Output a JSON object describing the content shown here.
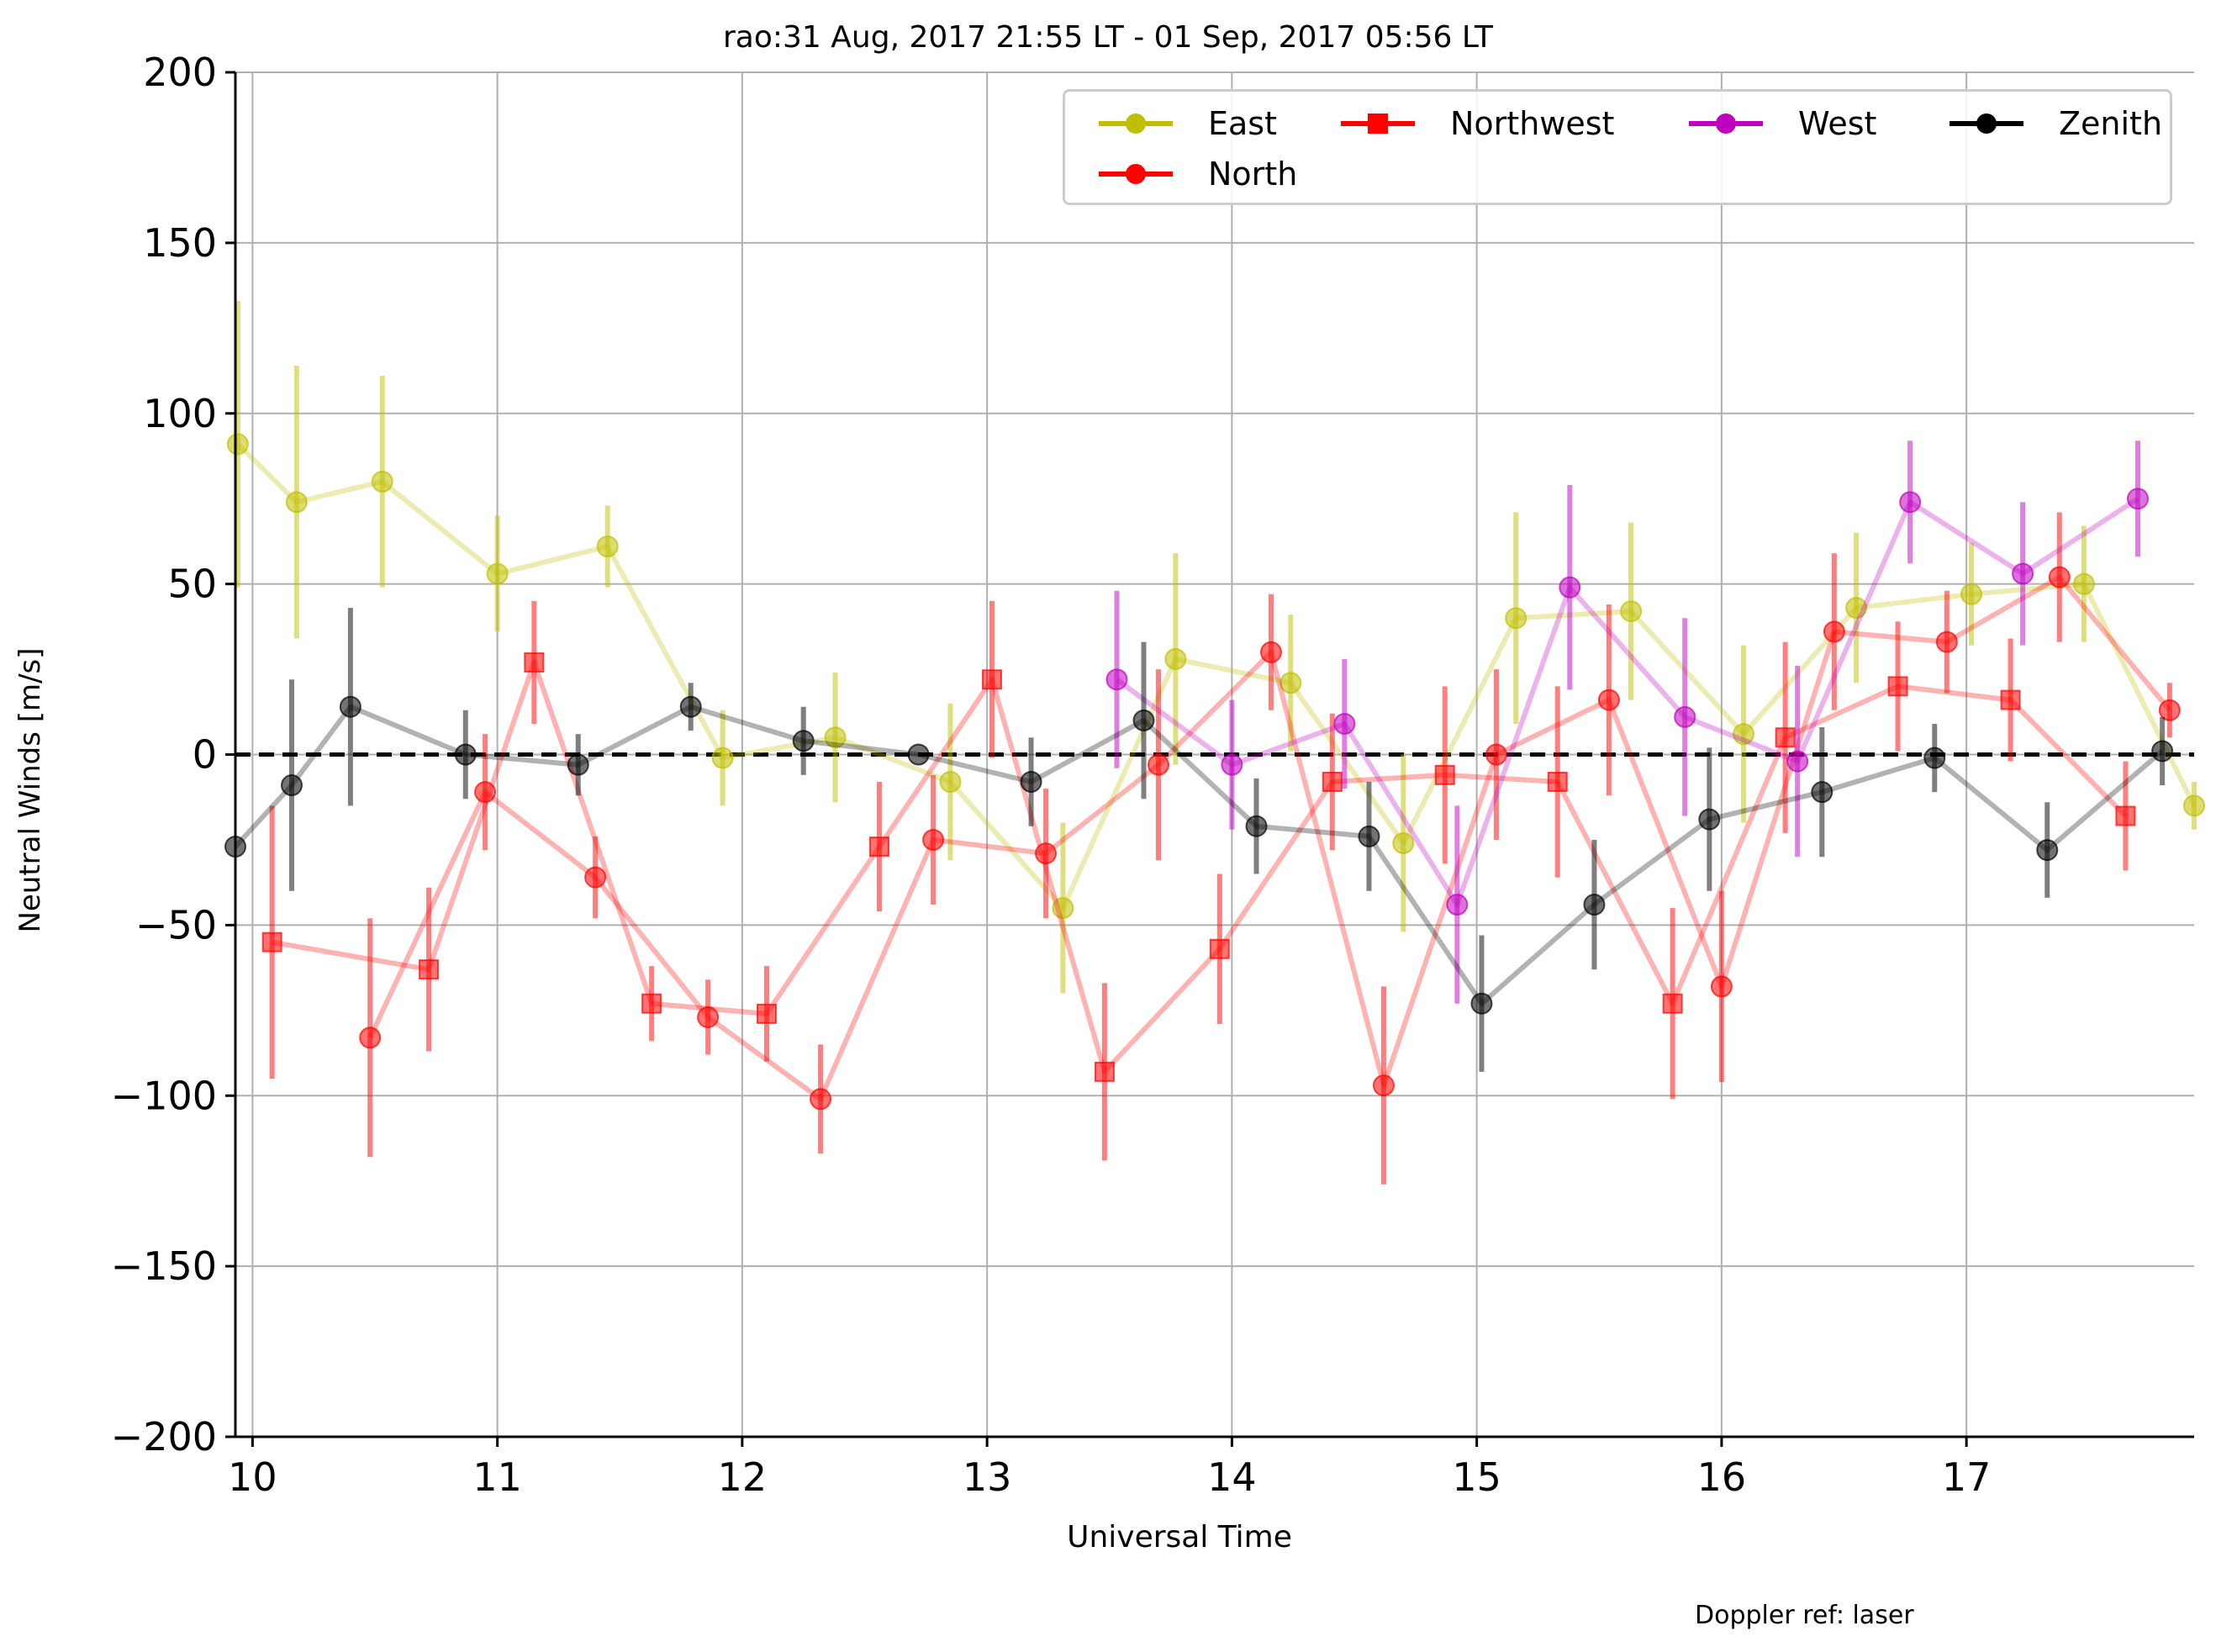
{
  "title": "rao:31 Aug, 2017 21:55 LT - 01 Sep, 2017 05:56 LT",
  "footnote": "Doppler ref: laser",
  "chart_data": {
    "type": "line",
    "xlabel": "Universal Time",
    "ylabel": "Neutral Winds [m/s]",
    "xlim": [
      9.93,
      17.93
    ],
    "ylim": [
      -200,
      200
    ],
    "xticks": [
      10,
      11,
      12,
      13,
      14,
      15,
      16,
      17
    ],
    "xtick_labels": [
      "10",
      "11",
      "12",
      "13",
      "14",
      "15",
      "16",
      "17"
    ],
    "yticks": [
      -200,
      -150,
      -100,
      -50,
      0,
      50,
      100,
      150,
      200
    ],
    "ytick_labels": [
      "−200",
      "−150",
      "−100",
      "−50",
      "0",
      "50",
      "100",
      "150",
      "200"
    ],
    "grid": true,
    "reference_line": 0,
    "legend_position": "top-right",
    "legend": [
      "East",
      "Northwest",
      "West",
      "Zenith",
      "North"
    ],
    "series": [
      {
        "name": "East",
        "color": "#bfbf00",
        "marker": "circle",
        "x": [
          9.94,
          10.18,
          10.53,
          11.0,
          11.45,
          11.92,
          12.38,
          12.85,
          13.31,
          13.77,
          14.24,
          14.7,
          15.16,
          15.63,
          16.09,
          16.55,
          17.02,
          17.48,
          17.93
        ],
        "y": [
          91,
          74,
          80,
          53,
          61,
          -1,
          5,
          -8,
          -45,
          28,
          21,
          -26,
          40,
          42,
          6,
          43,
          47,
          50,
          -15
        ],
        "err": [
          42,
          40,
          31,
          17,
          12,
          14,
          19,
          23,
          25,
          31,
          20,
          26,
          31,
          26,
          26,
          22,
          15,
          17,
          7
        ]
      },
      {
        "name": "North",
        "color": "#ff0000",
        "marker": "circle",
        "x": [
          10.48,
          10.95,
          11.4,
          11.86,
          12.32,
          12.78,
          13.24,
          13.7,
          14.16,
          14.62,
          15.08,
          15.54,
          16.0,
          16.46,
          16.92,
          17.38,
          17.83
        ],
        "y": [
          -83,
          -11,
          -36,
          -77,
          -101,
          -25,
          -29,
          -3,
          30,
          -97,
          0,
          16,
          -68,
          36,
          33,
          52,
          13
        ],
        "err": [
          35,
          17,
          12,
          11,
          16,
          19,
          19,
          28,
          17,
          29,
          25,
          28,
          28,
          23,
          15,
          19,
          8
        ]
      },
      {
        "name": "Northwest",
        "color": "#ff0000",
        "marker": "square",
        "x": [
          10.08,
          10.72,
          11.15,
          11.63,
          12.1,
          12.56,
          13.02,
          13.48,
          13.95,
          14.41,
          14.87,
          15.33,
          15.8,
          16.26,
          16.72,
          17.18,
          17.65
        ],
        "y": [
          -55,
          -63,
          27,
          -73,
          -76,
          -27,
          22,
          -93,
          -57,
          -8,
          -6,
          -8,
          -73,
          5,
          20,
          16,
          -18
        ],
        "err": [
          40,
          24,
          18,
          11,
          14,
          19,
          23,
          26,
          22,
          20,
          26,
          28,
          28,
          28,
          19,
          18,
          16
        ]
      },
      {
        "name": "West",
        "color": "#bf00bf",
        "marker": "circle",
        "x": [
          13.53,
          14.0,
          14.46,
          14.92,
          15.38,
          15.85,
          16.31,
          16.77,
          17.23,
          17.7
        ],
        "y": [
          22,
          -3,
          9,
          -44,
          49,
          11,
          -2,
          74,
          53,
          75
        ],
        "err": [
          26,
          19,
          19,
          29,
          30,
          29,
          28,
          18,
          21,
          17
        ]
      },
      {
        "name": "Zenith",
        "color": "#000000",
        "marker": "circle",
        "x": [
          9.93,
          10.16,
          10.4,
          10.87,
          11.33,
          11.79,
          12.25,
          12.72,
          13.18,
          13.64,
          14.1,
          14.56,
          15.02,
          15.48,
          15.95,
          16.41,
          16.87,
          17.33,
          17.8
        ],
        "y": [
          -27,
          -9,
          14,
          0,
          -3,
          14,
          4,
          0,
          -8,
          10,
          -21,
          -24,
          -73,
          -44,
          -19,
          -11,
          -1,
          -28,
          1
        ],
        "err": [
          0,
          31,
          29,
          13,
          9,
          7,
          10,
          0,
          13,
          23,
          14,
          16,
          20,
          19,
          21,
          19,
          10,
          14,
          10
        ]
      }
    ]
  }
}
